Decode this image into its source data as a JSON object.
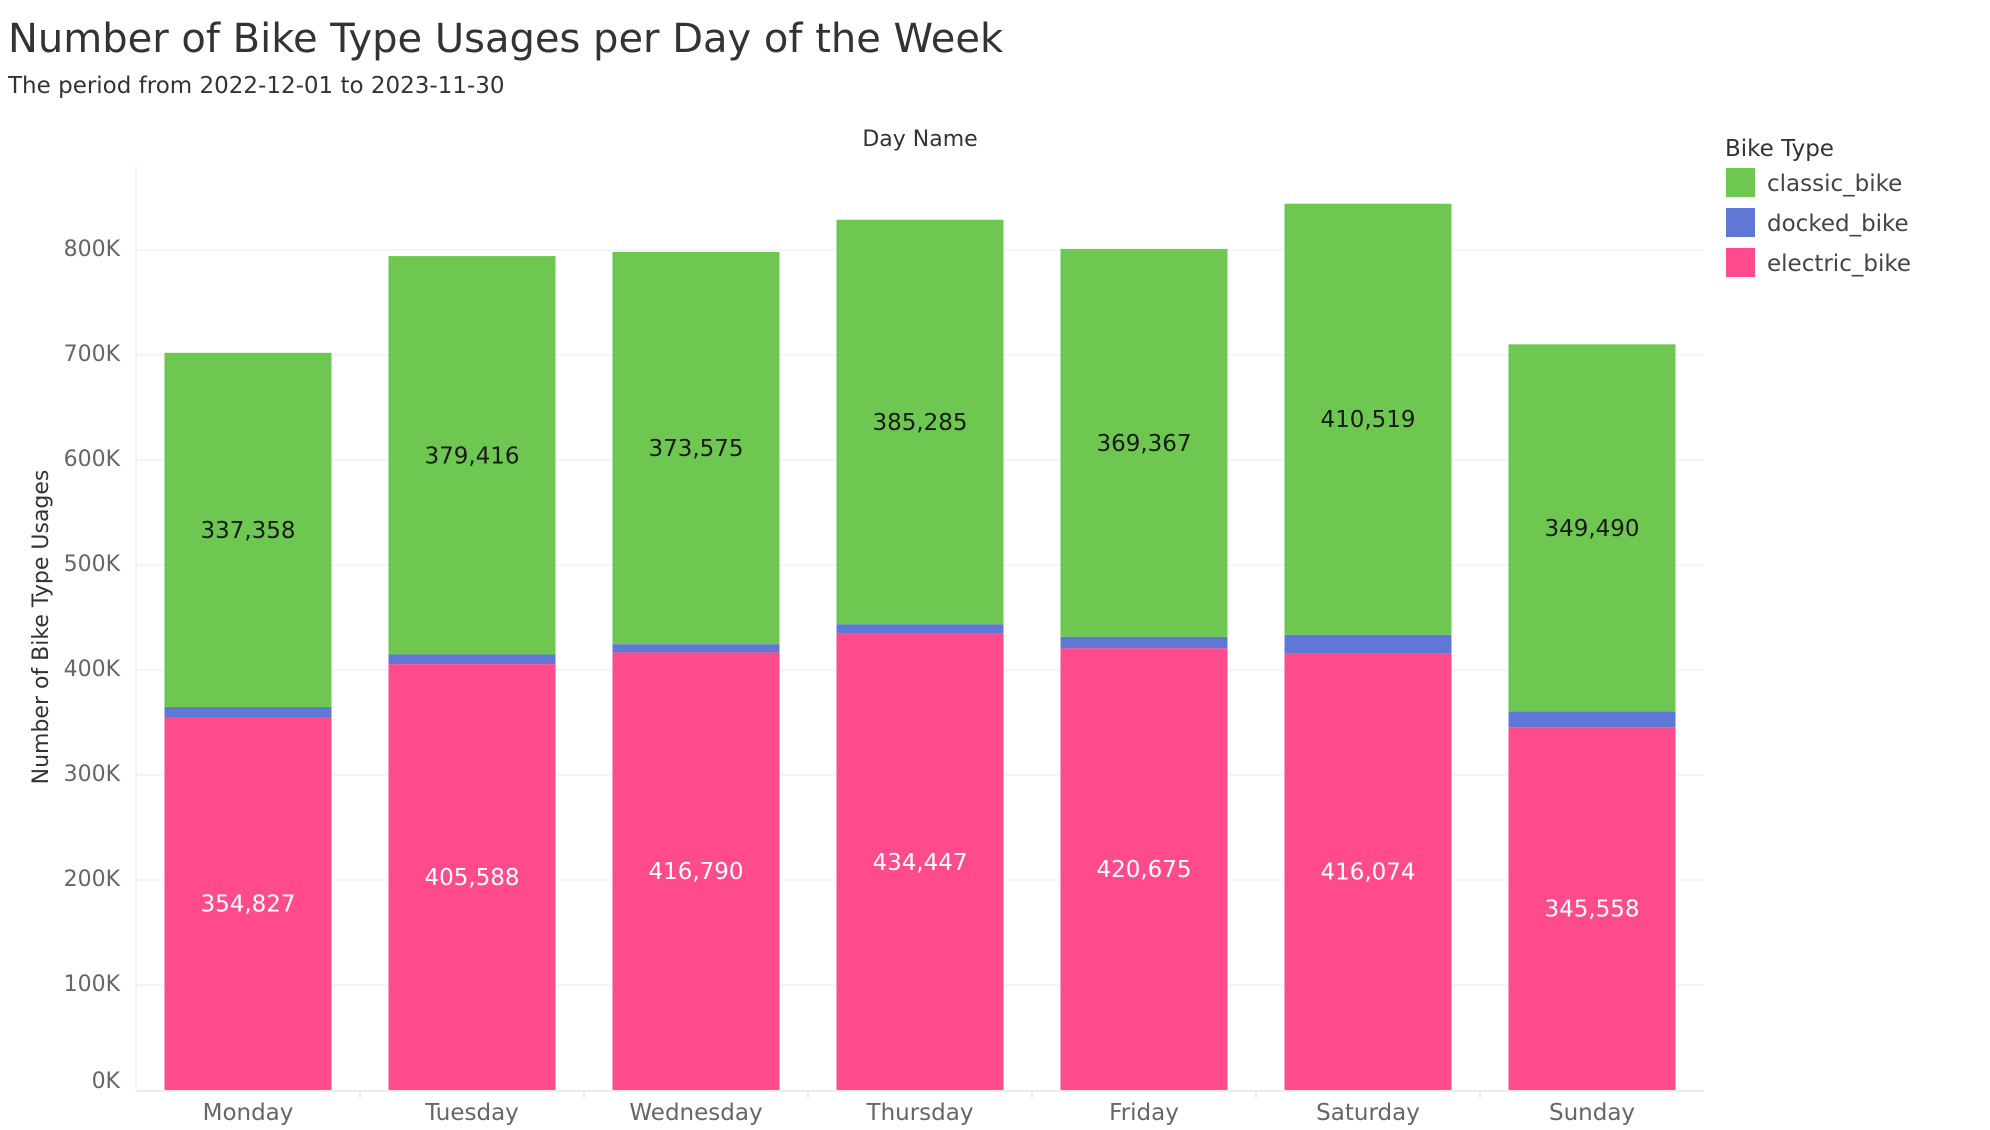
{
  "title": "Number of Bike Type Usages per Day of the Week",
  "subtitle": "The period from 2022-12-01 to 2023-11-30",
  "chart_data": {
    "type": "bar",
    "stacked": true,
    "column_header": "Day Name",
    "ylabel": "Number of Bike Type Usages",
    "ylim": [
      0,
      880000
    ],
    "yticks": [
      0,
      100000,
      200000,
      300000,
      400000,
      500000,
      600000,
      700000,
      800000
    ],
    "ytick_labels": [
      "0K",
      "100K",
      "200K",
      "300K",
      "400K",
      "500K",
      "600K",
      "700K",
      "800K"
    ],
    "grid": true,
    "categories": [
      "Monday",
      "Tuesday",
      "Wednesday",
      "Thursday",
      "Friday",
      "Saturday",
      "Sunday"
    ],
    "series": [
      {
        "name": "electric_bike",
        "color": "#ff4a8b",
        "label_color": "#ffffff",
        "values": [
          354827,
          405588,
          416790,
          434447,
          420675,
          416074,
          345558
        ],
        "labels": [
          "354,827",
          "405,588",
          "416,790",
          "434,447",
          "420,675",
          "416,074",
          "345,558"
        ]
      },
      {
        "name": "docked_bike",
        "color": "#5f78d6",
        "label_color": null,
        "values": [
          9900,
          9200,
          7800,
          9100,
          11000,
          17500,
          15100
        ],
        "labels": []
      },
      {
        "name": "classic_bike",
        "color": "#6dc751",
        "label_color": "#1a1a1a",
        "values": [
          337358,
          379416,
          373575,
          385285,
          369367,
          410519,
          349490
        ],
        "labels": [
          "337,358",
          "379,416",
          "373,575",
          "385,285",
          "369,367",
          "410,519",
          "349,490"
        ]
      }
    ],
    "legend": {
      "title": "Bike Type",
      "position": "top-right",
      "items": [
        {
          "name": "classic_bike",
          "color": "#6dc751"
        },
        {
          "name": "docked_bike",
          "color": "#5f78d6"
        },
        {
          "name": "electric_bike",
          "color": "#ff4a8b"
        }
      ]
    }
  }
}
